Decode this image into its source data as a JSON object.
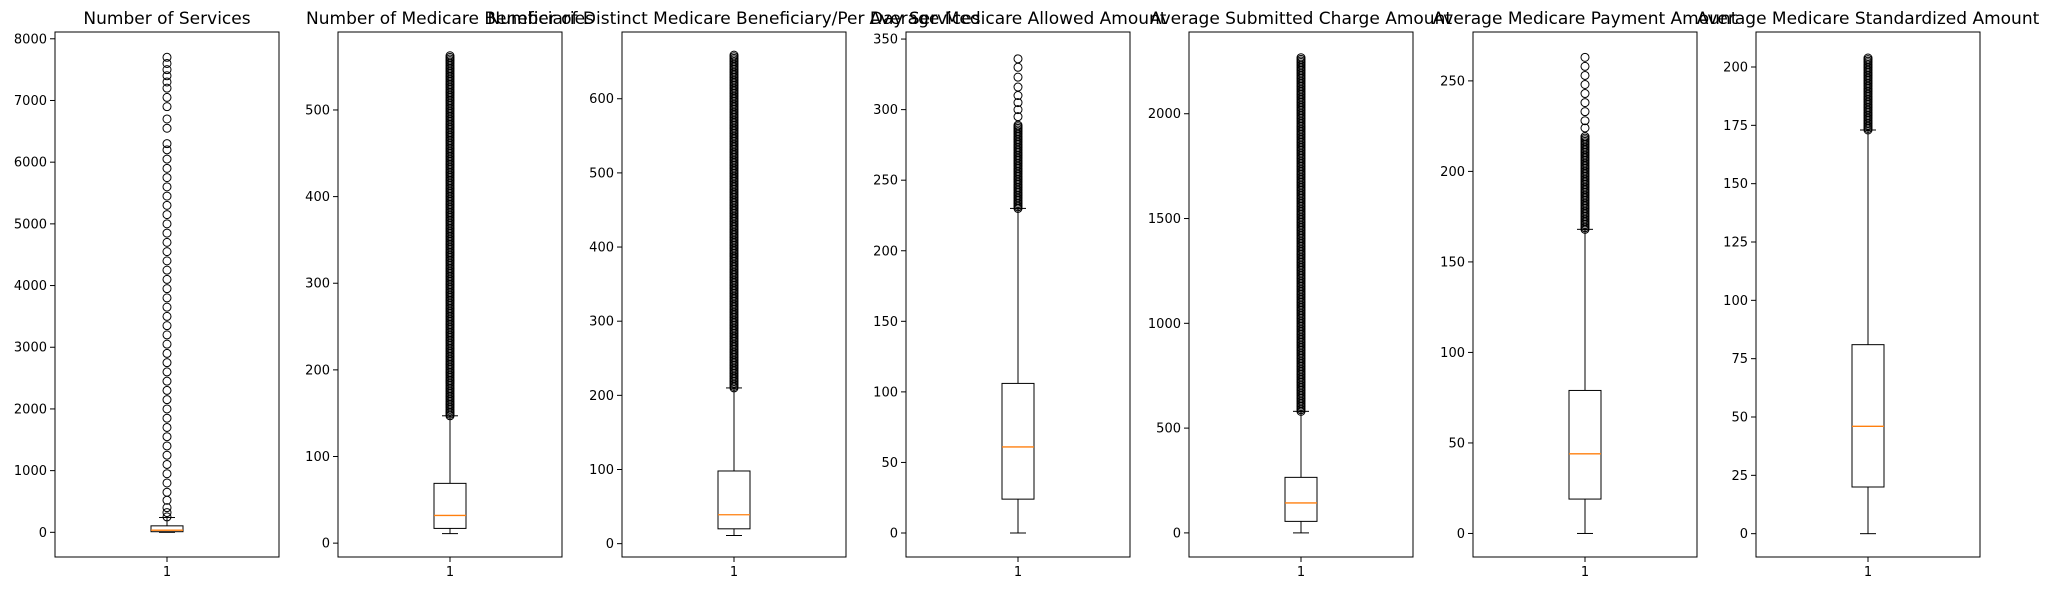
{
  "chart_data": [
    {
      "type": "box",
      "title": "Number of Services",
      "xticks": [
        "1"
      ],
      "ylim": [
        -400,
        8110
      ],
      "yticks": [
        0,
        1000,
        2000,
        3000,
        4000,
        5000,
        6000,
        7000,
        8000
      ],
      "box": {
        "whisker_low": 0,
        "q1": 10,
        "median": 35,
        "q3": 105,
        "whisker_high": 240
      },
      "outliers": [
        250,
        320,
        400,
        520,
        650,
        800,
        950,
        1100,
        1250,
        1400,
        1550,
        1700,
        1850,
        2000,
        2150,
        2300,
        2450,
        2600,
        2750,
        2900,
        3050,
        3200,
        3350,
        3500,
        3650,
        3800,
        3950,
        4100,
        4250,
        4400,
        4550,
        4700,
        4850,
        5000,
        5150,
        5300,
        5450,
        5600,
        5750,
        5900,
        6050,
        6200,
        6300,
        6550,
        6700,
        6900,
        7050,
        7200,
        7300,
        7400,
        7500,
        7600,
        7700
      ]
    },
    {
      "type": "box",
      "title": "Number of Medicare Beneficiaries",
      "xticks": [
        "1"
      ],
      "ylim": [
        -16,
        590
      ],
      "yticks": [
        0,
        100,
        200,
        300,
        400,
        500
      ],
      "box": {
        "whisker_low": 11,
        "q1": 17,
        "median": 32,
        "q3": 69,
        "whisker_high": 147
      },
      "outliers_dense_range": [
        147,
        563
      ]
    },
    {
      "type": "box",
      "title": "Number of Distinct Medicare Beneficiary/Per Day Services",
      "xticks": [
        "1"
      ],
      "ylim": [
        -18,
        690
      ],
      "yticks": [
        0,
        100,
        200,
        300,
        400,
        500,
        600
      ],
      "box": {
        "whisker_low": 11,
        "q1": 20,
        "median": 39,
        "q3": 98,
        "whisker_high": 210
      },
      "outliers_dense_range": [
        210,
        660
      ]
    },
    {
      "type": "box",
      "title": "Average Medicare Allowed Amount",
      "xticks": [
        "1"
      ],
      "ylim": [
        -17,
        355
      ],
      "yticks": [
        0,
        50,
        100,
        150,
        200,
        250,
        300,
        350
      ],
      "box": {
        "whisker_low": 0,
        "q1": 24,
        "median": 61,
        "q3": 106,
        "whisker_high": 230
      },
      "outliers_dense_range": [
        230,
        290
      ],
      "outliers": [
        295,
        300,
        305,
        310,
        316,
        323,
        330,
        336
      ]
    },
    {
      "type": "box",
      "title": "Average Submitted Charge Amount",
      "xticks": [
        "1"
      ],
      "ylim": [
        -115,
        2390
      ],
      "yticks": [
        0,
        500,
        1000,
        1500,
        2000
      ],
      "box": {
        "whisker_low": 0,
        "q1": 55,
        "median": 143,
        "q3": 265,
        "whisker_high": 580
      },
      "outliers_dense_range": [
        580,
        2270
      ]
    },
    {
      "type": "box",
      "title": "Average Medicare Payment Amount",
      "xticks": [
        "1"
      ],
      "ylim": [
        -13,
        277
      ],
      "yticks": [
        0,
        50,
        100,
        150,
        200,
        250
      ],
      "box": {
        "whisker_low": 0,
        "q1": 19,
        "median": 44,
        "q3": 79,
        "whisker_high": 168
      },
      "outliers_dense_range": [
        168,
        220
      ],
      "outliers": [
        224,
        228,
        233,
        238,
        243,
        248,
        253,
        258,
        263
      ]
    },
    {
      "type": "box",
      "title": "Average Medicare Standardized Amount",
      "xticks": [
        "1"
      ],
      "ylim": [
        -10,
        215
      ],
      "yticks": [
        0,
        25,
        50,
        75,
        100,
        125,
        150,
        175,
        200
      ],
      "box": {
        "whisker_low": 0,
        "q1": 20,
        "median": 46,
        "q3": 81,
        "whisker_high": 173
      },
      "outliers_dense_range": [
        173,
        204
      ]
    }
  ],
  "colors": {
    "median": "#ff7f0e",
    "box": "#000000",
    "background": "#ffffff"
  }
}
